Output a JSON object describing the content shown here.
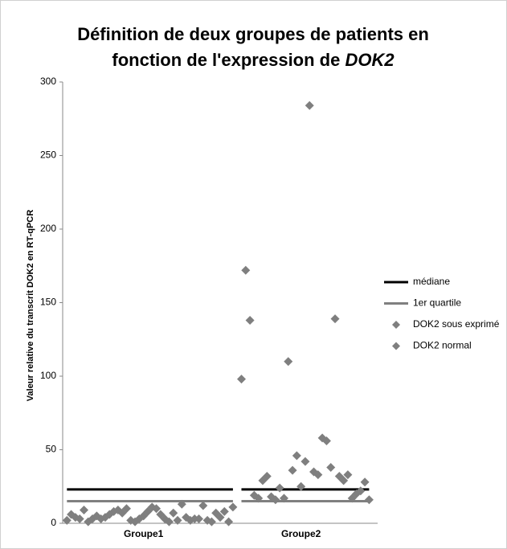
{
  "chart_data": {
    "type": "scatter",
    "title": [
      "Définition de deux groupes de patients en",
      "fonction de l'expression de"
    ],
    "title_italic": "DOK2",
    "y_label": "Valeur relative du transcrit DOK2 en RT-qPCR",
    "xlim": [
      0,
      74
    ],
    "xticks": [
      {
        "value": 19,
        "label": "Groupe1"
      },
      {
        "value": 56,
        "label": "Groupe2"
      }
    ],
    "ylim": [
      0,
      300
    ],
    "yticks": [
      0,
      50,
      100,
      150,
      200,
      250,
      300
    ],
    "grid": false,
    "legend": "right",
    "series": [
      {
        "name": "médiane",
        "kind": "line",
        "color": "#000000",
        "x": [
          1,
          40,
          41,
          42,
          72
        ],
        "values": [
          23,
          23,
          null,
          23,
          23
        ]
      },
      {
        "name": "1er quartile",
        "kind": "line",
        "color": "#808080",
        "x": [
          1,
          40,
          41,
          42,
          72
        ],
        "values": [
          15,
          15,
          null,
          15,
          15
        ]
      },
      {
        "name": "DOK2 sous exprimé",
        "kind": "marker",
        "color": "#7f7f7f",
        "x": [
          1,
          2,
          3,
          4,
          5,
          6,
          7,
          8,
          9,
          10,
          11,
          12,
          13,
          14,
          15,
          16,
          17,
          18,
          19,
          20,
          21,
          22,
          23,
          24,
          25,
          26,
          27,
          28,
          29,
          30,
          31,
          32,
          33,
          34,
          35,
          36,
          37,
          38,
          39,
          40
        ],
        "values": [
          2,
          6,
          4,
          3,
          9,
          1,
          3,
          5,
          3,
          4,
          6,
          8,
          9,
          7,
          10,
          2,
          1,
          3,
          5,
          8,
          11,
          10,
          6,
          3,
          1,
          7,
          2,
          13,
          4,
          2,
          3,
          3,
          12,
          2,
          1,
          7,
          4,
          8,
          1,
          11
        ]
      },
      {
        "name": "DOK2 normal",
        "kind": "marker",
        "color": "#7f7f7f",
        "x": [
          42,
          43,
          44,
          45,
          46,
          47,
          48,
          49,
          50,
          51,
          52,
          53,
          54,
          55,
          56,
          57,
          58,
          59,
          60,
          61,
          62,
          63,
          64,
          65,
          66,
          67,
          68,
          69,
          70,
          71,
          72
        ],
        "values": [
          98,
          172,
          138,
          19,
          17,
          29,
          32,
          18,
          16,
          24,
          17,
          110,
          36,
          46,
          25,
          42,
          284,
          35,
          33,
          58,
          56,
          38,
          139,
          32,
          29,
          33,
          17,
          20,
          22,
          28,
          16
        ]
      }
    ]
  }
}
